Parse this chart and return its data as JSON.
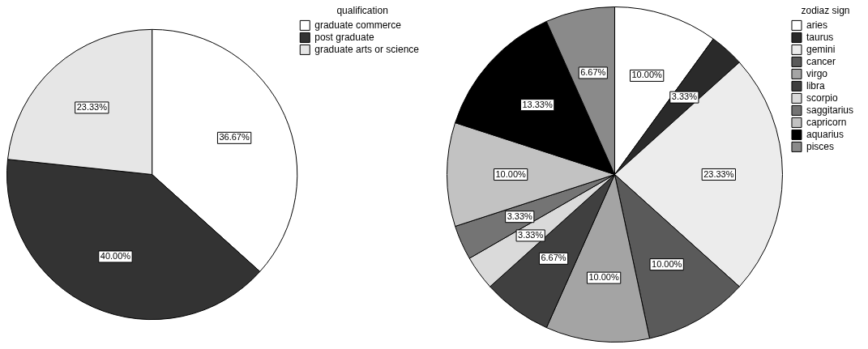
{
  "chart_data": [
    {
      "type": "pie",
      "legend_title": "qualification",
      "legend": "top right",
      "categories": [
        "graduate commerce",
        "post graduate",
        "graduate arts or science"
      ],
      "values": [
        36.67,
        40.0,
        23.33
      ],
      "colors": [
        "#ffffff",
        "#333333",
        "#e6e6e6"
      ],
      "value_labels": [
        "36.67%",
        "40.00%",
        "23.33%"
      ]
    },
    {
      "type": "pie",
      "legend_title": "zodiaz sign",
      "legend": "top right",
      "categories": [
        "aries",
        "taurus",
        "gemini",
        "cancer",
        "virgo",
        "libra",
        "scorpio",
        "saggitarius",
        "capricorn",
        "aquarius",
        "pisces"
      ],
      "values": [
        10.0,
        3.33,
        23.33,
        10.0,
        10.0,
        6.67,
        3.33,
        3.33,
        10.0,
        13.33,
        6.67
      ],
      "colors": [
        "#ffffff",
        "#2a2a2a",
        "#ececec",
        "#5a5a5a",
        "#a4a4a4",
        "#404040",
        "#dadada",
        "#747474",
        "#c2c2c2",
        "#000000",
        "#8a8a8a"
      ],
      "value_labels": [
        "10.00%",
        "3.33%",
        "23.33%",
        "10.00%",
        "10.00%",
        "6.67%",
        "3.33%",
        "3.33%",
        "10.00%",
        "13.33%",
        "6.67%"
      ]
    }
  ]
}
